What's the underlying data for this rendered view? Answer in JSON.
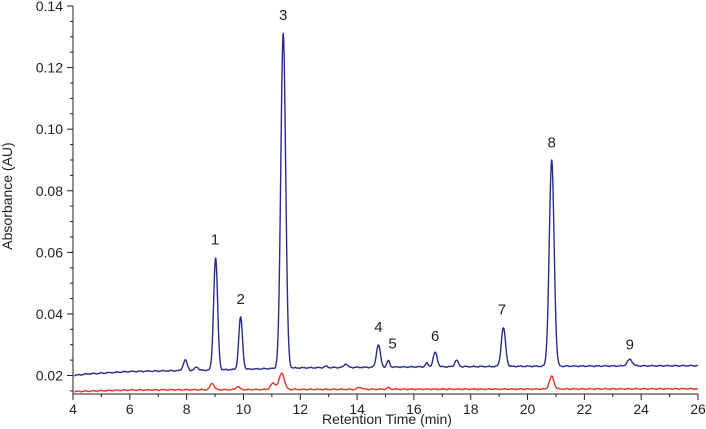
{
  "chart_data": {
    "type": "line",
    "title": "",
    "xlabel": "Retention Time (min)",
    "ylabel": "Absorbance (AU)",
    "xlim": [
      4,
      26
    ],
    "ylim": [
      0.014,
      0.14
    ],
    "x_ticks": [
      4,
      6,
      8,
      10,
      12,
      14,
      16,
      18,
      20,
      22,
      24,
      26
    ],
    "y_ticks": [
      0.02,
      0.04,
      0.06,
      0.08,
      0.1,
      0.12,
      0.14
    ],
    "y_tick_labels": [
      "0.02",
      "0.04",
      "0.06",
      "0.08",
      "0.10",
      "0.12",
      "0.14"
    ],
    "grid": false,
    "legend": "none",
    "series": [
      {
        "color": "#2b2a8c",
        "baseline": [
          [
            4.0,
            0.02
          ],
          [
            4.5,
            0.0205
          ],
          [
            6.0,
            0.0213
          ],
          [
            9.0,
            0.0218
          ],
          [
            12.0,
            0.0225
          ],
          [
            16.0,
            0.0228
          ],
          [
            20.0,
            0.023
          ],
          [
            26.0,
            0.0232
          ]
        ],
        "peaks": [
          {
            "t": 7.95,
            "height": 0.025,
            "width": 0.07
          },
          {
            "t": 8.35,
            "height": 0.0228,
            "width": 0.06
          },
          {
            "t": 9.02,
            "height": 0.0582,
            "width": 0.07
          },
          {
            "t": 9.9,
            "height": 0.039,
            "width": 0.065
          },
          {
            "t": 11.4,
            "height": 0.1312,
            "width": 0.085
          },
          {
            "t": 12.9,
            "height": 0.023,
            "width": 0.06
          },
          {
            "t": 13.6,
            "height": 0.0238,
            "width": 0.06
          },
          {
            "t": 14.75,
            "height": 0.03,
            "width": 0.07
          },
          {
            "t": 15.1,
            "height": 0.0248,
            "width": 0.05
          },
          {
            "t": 16.45,
            "height": 0.024,
            "width": 0.05
          },
          {
            "t": 16.75,
            "height": 0.0275,
            "width": 0.07
          },
          {
            "t": 17.5,
            "height": 0.025,
            "width": 0.06
          },
          {
            "t": 19.15,
            "height": 0.0355,
            "width": 0.075
          },
          {
            "t": 20.85,
            "height": 0.0898,
            "width": 0.085
          },
          {
            "t": 23.6,
            "height": 0.0252,
            "width": 0.09
          }
        ]
      },
      {
        "color": "#e8332a",
        "baseline": [
          [
            4.0,
            0.0148
          ],
          [
            6.0,
            0.0153
          ],
          [
            12.0,
            0.0155
          ],
          [
            20.0,
            0.0156
          ],
          [
            26.0,
            0.0157
          ]
        ],
        "peaks": [
          {
            "t": 8.9,
            "height": 0.0175,
            "width": 0.07
          },
          {
            "t": 9.8,
            "height": 0.0165,
            "width": 0.06
          },
          {
            "t": 11.05,
            "height": 0.0175,
            "width": 0.09
          },
          {
            "t": 11.35,
            "height": 0.0208,
            "width": 0.09
          },
          {
            "t": 14.1,
            "height": 0.0162,
            "width": 0.07
          },
          {
            "t": 15.1,
            "height": 0.016,
            "width": 0.06
          },
          {
            "t": 20.85,
            "height": 0.0197,
            "width": 0.08
          }
        ]
      }
    ],
    "annotations": [
      {
        "text": "1",
        "x": 9.0,
        "y": 0.0625
      },
      {
        "text": "2",
        "x": 9.9,
        "y": 0.0432
      },
      {
        "text": "3",
        "x": 11.4,
        "y": 0.1355
      },
      {
        "text": "4",
        "x": 14.75,
        "y": 0.0342
      },
      {
        "text": "5",
        "x": 15.25,
        "y": 0.0288
      },
      {
        "text": "6",
        "x": 16.75,
        "y": 0.0312
      },
      {
        "text": "7",
        "x": 19.1,
        "y": 0.0398
      },
      {
        "text": "8",
        "x": 20.85,
        "y": 0.094
      },
      {
        "text": "9",
        "x": 23.6,
        "y": 0.0285
      }
    ]
  }
}
